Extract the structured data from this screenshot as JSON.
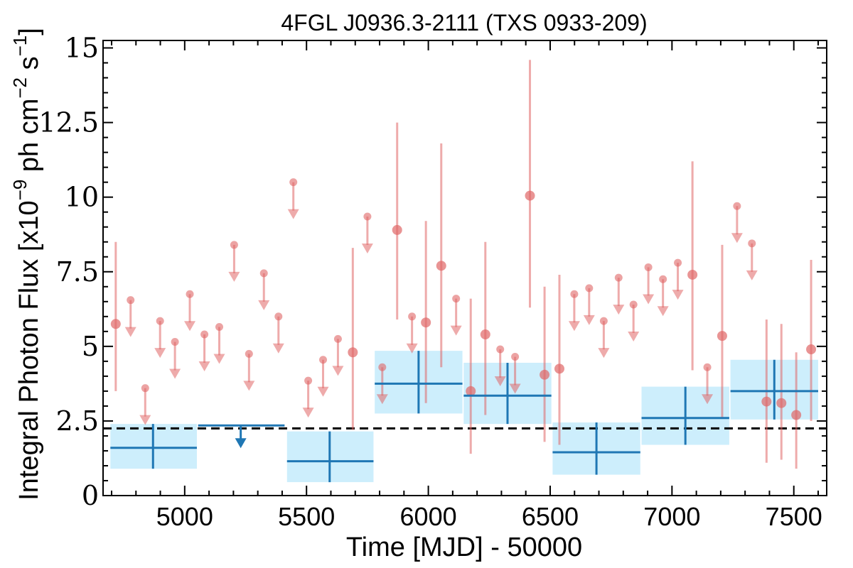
{
  "chart_data": {
    "type": "scatter",
    "title": "4FGL J0936.3-2111 (TXS 0933-209)",
    "xlabel": "Time [MJD] - 50000",
    "ylabel_prefix": "Integral Photon Flux [x10",
    "ylabel_exp1": "−9",
    "ylabel_mid": " ph cm",
    "ylabel_exp2": "−2",
    "ylabel_s": " s",
    "ylabel_exp3": "−1",
    "ylabel_suffix": "]",
    "xlim": [
      4665,
      7635
    ],
    "ylim": [
      0,
      15.25
    ],
    "x_ticks": [
      5000,
      5500,
      6000,
      6500,
      7000,
      7500
    ],
    "x_tick_labels": [
      "5000",
      "5500",
      "6000",
      "6500",
      "7000",
      "7500"
    ],
    "y_ticks": [
      0,
      2.5,
      5,
      7.5,
      10,
      12.5,
      15
    ],
    "y_tick_labels": [
      "0",
      "2.5",
      "5",
      "7.5",
      "10",
      "12.5",
      "15"
    ],
    "mean_flux": 2.25,
    "colors": {
      "points": "#e06666",
      "bins": "#1f77b4",
      "bin_band": "#cdeefc",
      "mean_line": "#000000"
    },
    "short_bins": {
      "detections": [
        {
          "x": 4717,
          "y": 5.75,
          "ylo": 3.5,
          "yhi": 8.5
        },
        {
          "x": 5690,
          "y": 4.8,
          "ylo": 2.2,
          "yhi": 8.3
        },
        {
          "x": 5872,
          "y": 8.9,
          "ylo": 5.9,
          "yhi": 12.5
        },
        {
          "x": 5990,
          "y": 5.8,
          "ylo": 3.1,
          "yhi": 9.2
        },
        {
          "x": 6053,
          "y": 7.7,
          "ylo": 4.3,
          "yhi": 11.8
        },
        {
          "x": 6174,
          "y": 3.5,
          "ylo": 1.4,
          "yhi": 6.6
        },
        {
          "x": 6234,
          "y": 5.4,
          "ylo": 2.7,
          "yhi": 8.5
        },
        {
          "x": 6417,
          "y": 10.05,
          "ylo": 6.3,
          "yhi": 14.6
        },
        {
          "x": 6477,
          "y": 4.05,
          "ylo": 1.8,
          "yhi": 7.0
        },
        {
          "x": 6538,
          "y": 4.25,
          "ylo": 1.7,
          "yhi": 7.4
        },
        {
          "x": 7084,
          "y": 7.4,
          "ylo": 4.2,
          "yhi": 11.2
        },
        {
          "x": 7206,
          "y": 5.35,
          "ylo": 2.6,
          "yhi": 8.4
        },
        {
          "x": 7388,
          "y": 3.15,
          "ylo": 1.1,
          "yhi": 5.9
        },
        {
          "x": 7449,
          "y": 3.1,
          "ylo": 1.2,
          "yhi": 5.75
        },
        {
          "x": 7510,
          "y": 2.7,
          "ylo": 0.9,
          "yhi": 4.8
        },
        {
          "x": 7571,
          "y": 4.9,
          "ylo": 2.5,
          "yhi": 7.9
        }
      ],
      "upper_limits": [
        {
          "x": 4778,
          "y": 6.55
        },
        {
          "x": 4838,
          "y": 3.6
        },
        {
          "x": 4899,
          "y": 5.85
        },
        {
          "x": 4960,
          "y": 5.15
        },
        {
          "x": 5021,
          "y": 6.75
        },
        {
          "x": 5081,
          "y": 5.4
        },
        {
          "x": 5142,
          "y": 5.65
        },
        {
          "x": 5203,
          "y": 8.4
        },
        {
          "x": 5264,
          "y": 4.75
        },
        {
          "x": 5325,
          "y": 7.45
        },
        {
          "x": 5385,
          "y": 6.0
        },
        {
          "x": 5446,
          "y": 10.5
        },
        {
          "x": 5507,
          "y": 3.85
        },
        {
          "x": 5568,
          "y": 4.55
        },
        {
          "x": 5629,
          "y": 5.25
        },
        {
          "x": 5750,
          "y": 9.35
        },
        {
          "x": 5811,
          "y": 4.3
        },
        {
          "x": 5933,
          "y": 6.0
        },
        {
          "x": 6114,
          "y": 6.6
        },
        {
          "x": 6295,
          "y": 4.9
        },
        {
          "x": 6356,
          "y": 4.65
        },
        {
          "x": 6599,
          "y": 6.75
        },
        {
          "x": 6660,
          "y": 6.95
        },
        {
          "x": 6720,
          "y": 5.85
        },
        {
          "x": 6781,
          "y": 7.3
        },
        {
          "x": 6842,
          "y": 6.4
        },
        {
          "x": 6903,
          "y": 7.65
        },
        {
          "x": 6963,
          "y": 7.25
        },
        {
          "x": 7024,
          "y": 7.8
        },
        {
          "x": 7145,
          "y": 4.3
        },
        {
          "x": 7267,
          "y": 9.7
        },
        {
          "x": 7328,
          "y": 8.45
        }
      ]
    },
    "long_bins": {
      "detections": [
        {
          "x": 4870,
          "xlo": 4695,
          "xhi": 5050,
          "y": 1.6,
          "ylo": 0.9,
          "yhi": 2.4
        },
        {
          "x": 5595,
          "xlo": 5420,
          "xhi": 5775,
          "y": 1.15,
          "ylo": 0.45,
          "yhi": 2.15
        },
        {
          "x": 5960,
          "xlo": 5780,
          "xhi": 6140,
          "y": 3.75,
          "ylo": 2.75,
          "yhi": 4.85
        },
        {
          "x": 6325,
          "xlo": 6145,
          "xhi": 6505,
          "y": 3.35,
          "ylo": 2.4,
          "yhi": 4.45
        },
        {
          "x": 6690,
          "xlo": 6510,
          "xhi": 6870,
          "y": 1.45,
          "ylo": 0.7,
          "yhi": 2.45
        },
        {
          "x": 7055,
          "xlo": 6875,
          "xhi": 7235,
          "y": 2.6,
          "ylo": 1.7,
          "yhi": 3.65
        },
        {
          "x": 7420,
          "xlo": 7240,
          "xhi": 7600,
          "y": 3.5,
          "ylo": 2.55,
          "yhi": 4.55
        }
      ],
      "upper_limits": [
        {
          "x": 5230,
          "xlo": 5055,
          "xhi": 5410,
          "y": 2.35
        }
      ]
    }
  }
}
